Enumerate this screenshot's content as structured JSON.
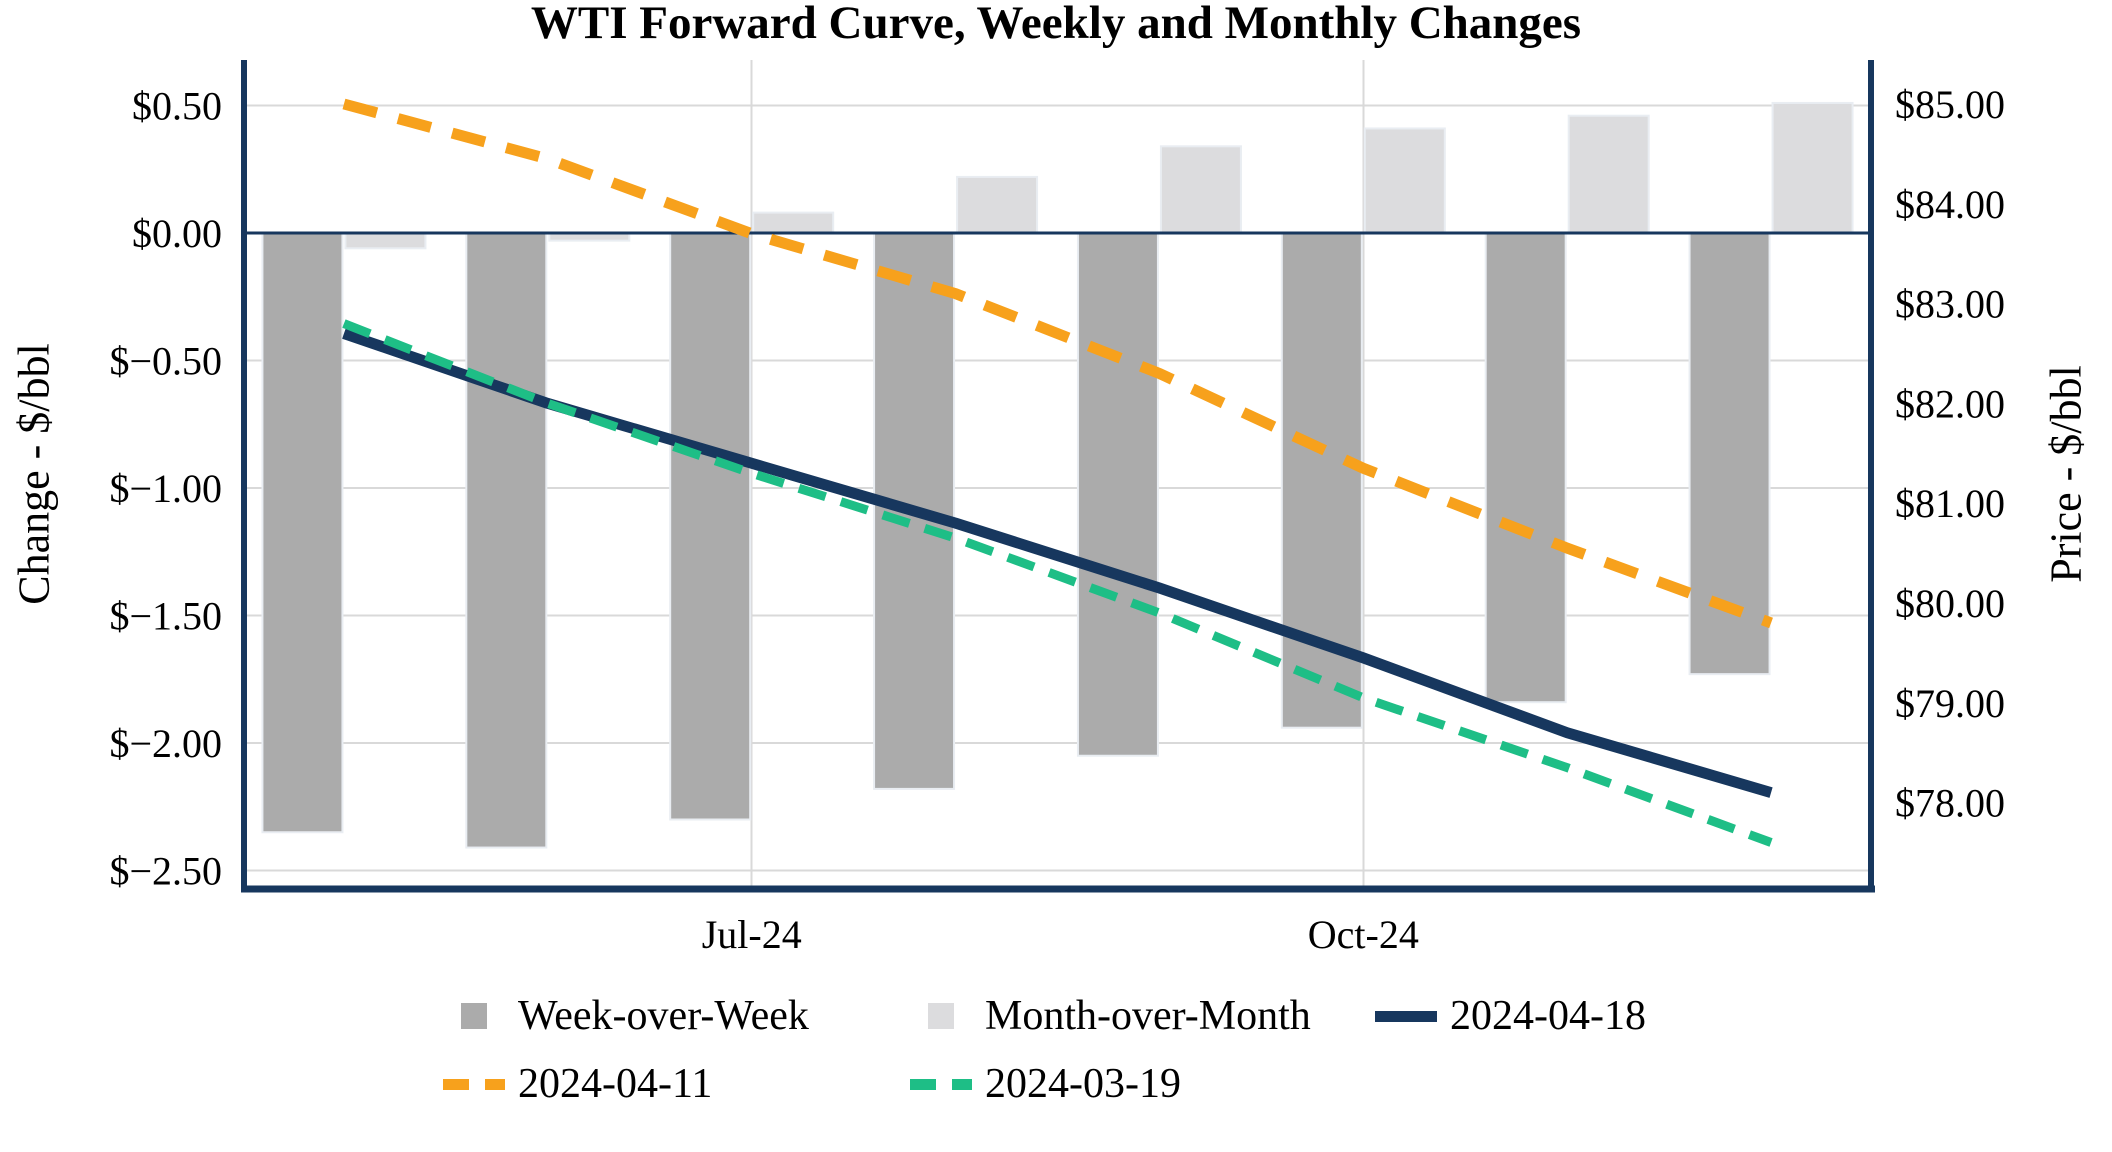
{
  "chart_data": {
    "type": "combo-bar-line",
    "title": "WTI Forward Curve, Weekly and Monthly Changes",
    "n_categories": 8,
    "x_ticks": [
      {
        "index": 2,
        "label": "Jul-24"
      },
      {
        "index": 5,
        "label": "Oct-24"
      }
    ],
    "left_axis": {
      "title": "Change - $/bbl",
      "min": -2.5,
      "max": 0.5,
      "step": 0.5,
      "ticks": [
        {
          "value": 0.5,
          "label": "$0.50"
        },
        {
          "value": 0.0,
          "label": "$0.00"
        },
        {
          "value": -0.5,
          "label": "$−0.50"
        },
        {
          "value": -1.0,
          "label": "$−1.00"
        },
        {
          "value": -1.5,
          "label": "$−1.50"
        },
        {
          "value": -2.0,
          "label": "$−2.00"
        },
        {
          "value": -2.5,
          "label": "$−2.50"
        }
      ]
    },
    "right_axis": {
      "title": "Price - $/bbl",
      "min": 78,
      "max": 85,
      "step": 1,
      "ticks": [
        {
          "value": 85,
          "label": "$85.00"
        },
        {
          "value": 84,
          "label": "$84.00"
        },
        {
          "value": 83,
          "label": "$83.00"
        },
        {
          "value": 82,
          "label": "$82.00"
        },
        {
          "value": 81,
          "label": "$81.00"
        },
        {
          "value": 80,
          "label": "$80.00"
        },
        {
          "value": 79,
          "label": "$79.00"
        },
        {
          "value": 78,
          "label": "$78.00"
        }
      ]
    },
    "grid": true,
    "zero_line": true,
    "legend_position": "bottom",
    "bar_series": [
      {
        "name": "Week-over-Week",
        "axis": "left",
        "color": "#ABABAB",
        "values": [
          -2.35,
          -2.41,
          -2.3,
          -2.18,
          -2.05,
          -1.94,
          -1.84,
          -1.73
        ]
      },
      {
        "name": "Month-over-Month",
        "axis": "left",
        "color": "#DCDCDE",
        "values": [
          -0.06,
          -0.03,
          0.08,
          0.22,
          0.34,
          0.41,
          0.46,
          0.51
        ]
      }
    ],
    "line_series": [
      {
        "name": "2024-04-11",
        "axis": "right",
        "color": "#F7A11C",
        "style": "dashed",
        "values": [
          85.0,
          84.45,
          83.7,
          83.1,
          82.3,
          81.35,
          80.55,
          79.8
        ]
      },
      {
        "name": "2024-04-18",
        "axis": "right",
        "color": "#17375E",
        "style": "solid",
        "values": [
          82.7,
          82.0,
          81.4,
          80.8,
          80.15,
          79.45,
          78.7,
          78.1
        ]
      },
      {
        "name": "2024-03-19",
        "axis": "right",
        "color": "#1EBE86",
        "style": "dashed",
        "values": [
          82.8,
          82.0,
          81.3,
          80.65,
          79.9,
          79.05,
          78.35,
          77.6
        ]
      }
    ],
    "legend": {
      "rows": [
        [
          {
            "label": "Week-over-Week",
            "swatch": "square",
            "color": "#ABABAB"
          },
          {
            "label": "Month-over-Month",
            "swatch": "square",
            "color": "#DCDCDE"
          },
          {
            "label": "2024-04-18",
            "swatch": "line",
            "color": "#17375E"
          }
        ],
        [
          {
            "label": "2024-04-11",
            "swatch": "dashed",
            "color": "#F7A11C"
          },
          {
            "label": "2024-03-19",
            "swatch": "dashed",
            "color": "#1EBE86"
          }
        ]
      ]
    },
    "colors": {
      "axis": "#17375E",
      "gridline": "#D9D9D9",
      "bar_border": "#E9EDF2",
      "background": "#FFFFFF"
    }
  }
}
